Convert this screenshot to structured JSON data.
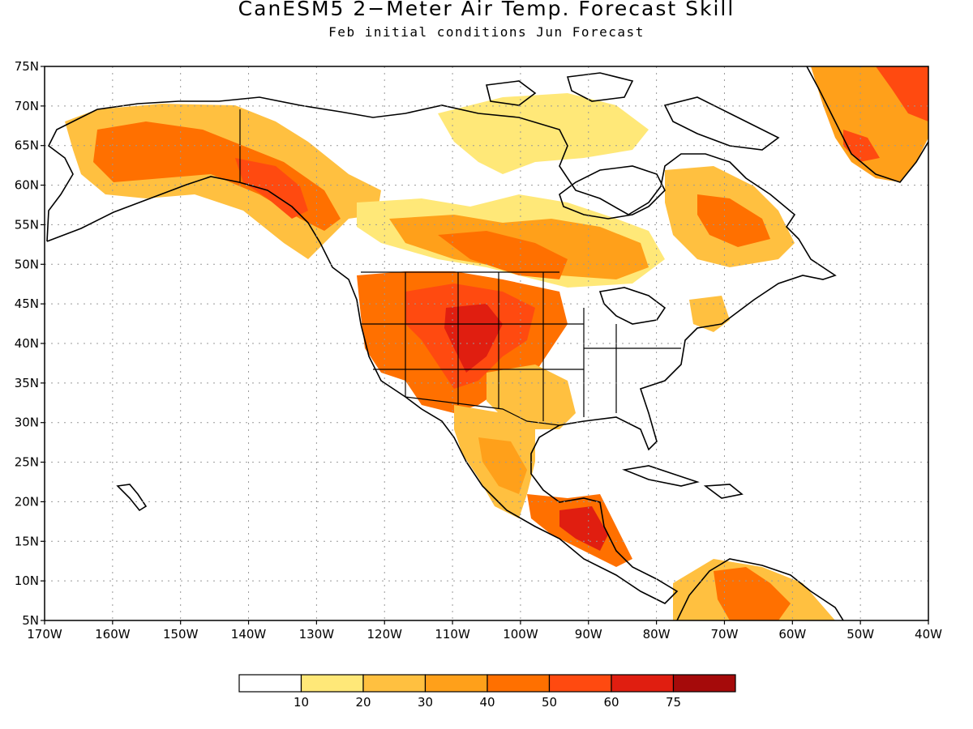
{
  "title": "CanESM5 2−Meter Air Temp. Forecast Skill",
  "subtitle": "Feb initial conditions  Jun Forecast",
  "map": {
    "lon_range": [
      -170,
      -40
    ],
    "lat_range": [
      5,
      75
    ],
    "lat_ticks": [
      "5N",
      "10N",
      "15N",
      "20N",
      "25N",
      "30N",
      "35N",
      "40N",
      "45N",
      "50N",
      "55N",
      "60N",
      "65N",
      "70N",
      "75N"
    ],
    "lon_ticks": [
      "170W",
      "160W",
      "150W",
      "140W",
      "130W",
      "120W",
      "110W",
      "100W",
      "90W",
      "80W",
      "70W",
      "60W",
      "50W",
      "40W"
    ],
    "grid": "dotted"
  },
  "colorbar": {
    "labels": [
      "10",
      "20",
      "30",
      "40",
      "50",
      "60",
      "75"
    ],
    "colors": [
      "#ffffff",
      "#ffe878",
      "#ffc040",
      "#ffa01a",
      "#ff7000",
      "#ff4a10",
      "#e01e10",
      "#a50a0a"
    ]
  },
  "colors": {
    "land_outline": "#000000",
    "grid": "#999999"
  }
}
